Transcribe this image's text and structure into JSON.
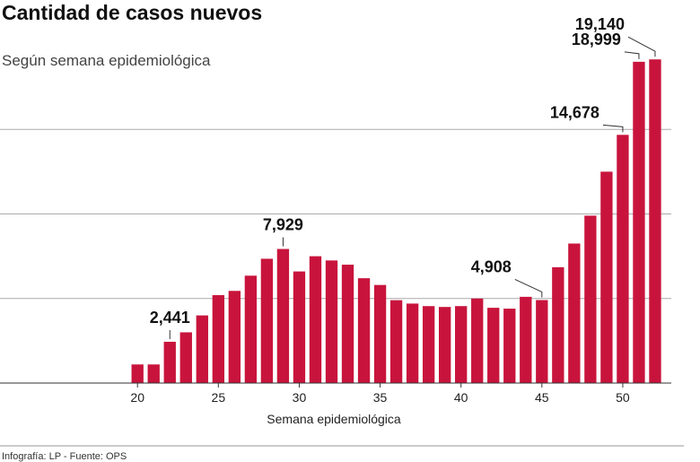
{
  "chart_data": {
    "type": "bar",
    "title": "Cantidad de casos nuevos",
    "subtitle": "Según semana epidemiológica",
    "x_label": "Semana epidemiológica",
    "source": "Infografía: LP - Fuente: OPS",
    "x": [
      20,
      21,
      22,
      23,
      24,
      25,
      26,
      27,
      28,
      29,
      30,
      31,
      32,
      33,
      34,
      35,
      36,
      37,
      38,
      39,
      40,
      41,
      42,
      43,
      44,
      45,
      46,
      47,
      48,
      49,
      50,
      51,
      52
    ],
    "values": [
      1100,
      1100,
      2441,
      3000,
      4000,
      5200,
      5450,
      6350,
      7350,
      7929,
      6600,
      7500,
      7250,
      7000,
      6200,
      5800,
      4900,
      4700,
      4550,
      4500,
      4550,
      5000,
      4450,
      4400,
      5100,
      4908,
      6850,
      8250,
      9900,
      12500,
      14678,
      18999,
      19140
    ],
    "value_labels": [
      null,
      null,
      "2,441",
      null,
      null,
      null,
      null,
      null,
      null,
      "7,929",
      null,
      null,
      null,
      null,
      null,
      null,
      null,
      null,
      null,
      null,
      null,
      null,
      null,
      null,
      null,
      "4,908",
      null,
      null,
      null,
      null,
      "14,678",
      "18,999",
      "19,140"
    ],
    "color": "#c8143c",
    "xlim": [
      11.5,
      53
    ],
    "xticks": [
      20,
      25,
      30,
      35,
      40,
      45,
      50
    ],
    "ylim": [
      0,
      20000
    ],
    "yticks": [
      5000,
      10000,
      15000
    ],
    "grid": true
  }
}
